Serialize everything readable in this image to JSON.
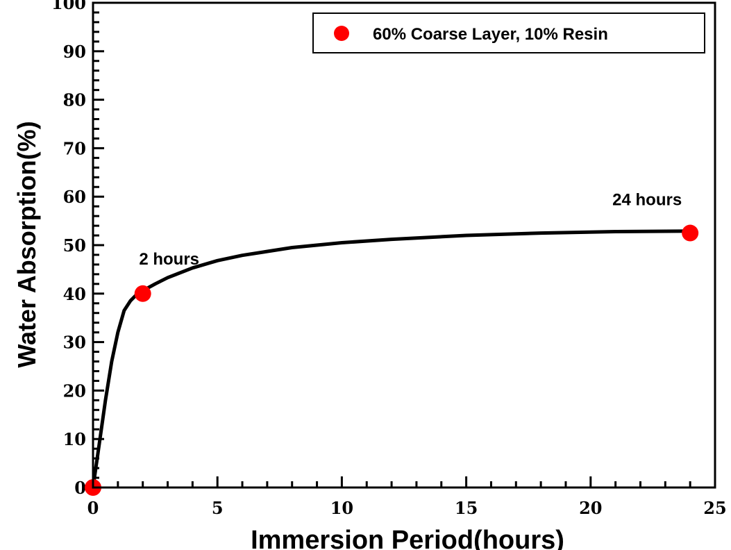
{
  "chart_data": {
    "type": "scatter",
    "xlabel": "Immersion Period(hours)",
    "ylabel": "Water Absorption(%)",
    "xlim": [
      0,
      25
    ],
    "ylim": [
      0,
      100
    ],
    "x_ticks": [
      0,
      5,
      10,
      15,
      20,
      25
    ],
    "y_ticks": [
      0,
      10,
      20,
      30,
      40,
      50,
      60,
      70,
      80,
      90,
      100
    ],
    "x_tick_labels": [
      "0",
      "5",
      "10",
      "15",
      "20",
      "25"
    ],
    "y_tick_labels": [
      "0",
      "10",
      "20",
      "30",
      "40",
      "50",
      "60",
      "70",
      "80",
      "90",
      "100"
    ],
    "grid": false,
    "legend_position": "top-right",
    "series": [
      {
        "name": "60% Coarse Layer, 10% Resin",
        "color": "#ff0000",
        "x": [
          0,
          2,
          24
        ],
        "y": [
          0,
          40,
          52.5
        ]
      }
    ],
    "fit_curve": {
      "color": "#000000",
      "x": [
        0,
        0.25,
        0.5,
        0.75,
        1,
        1.25,
        1.5,
        1.75,
        2,
        2.5,
        3,
        4,
        5,
        6,
        8,
        10,
        12,
        15,
        18,
        21,
        24
      ],
      "y": [
        0,
        9,
        18,
        26,
        32,
        36.5,
        38.5,
        39.8,
        40.6,
        42,
        43.3,
        45.3,
        46.8,
        47.9,
        49.5,
        50.5,
        51.2,
        52,
        52.5,
        52.8,
        52.9
      ]
    },
    "annotations": [
      {
        "text": "2 hours",
        "x": 2,
        "y": 40
      },
      {
        "text": "24 hours",
        "x": 24,
        "y": 52.5
      }
    ]
  }
}
